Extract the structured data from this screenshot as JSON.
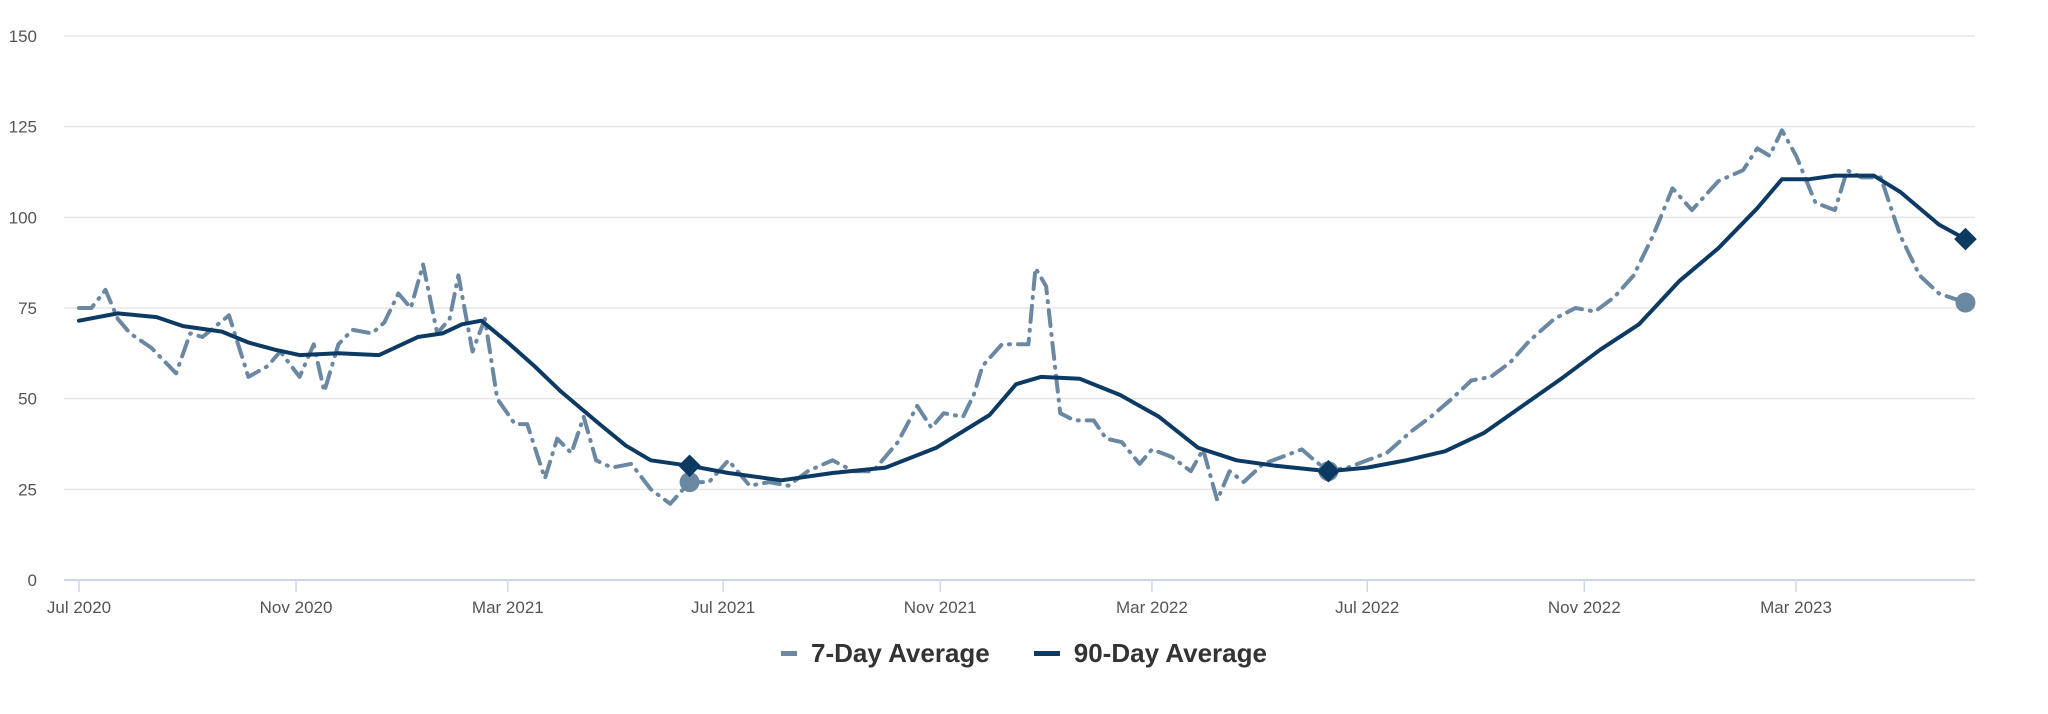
{
  "chart_data": {
    "type": "line",
    "x_unit": "days since 2020-07-01",
    "xlim": [
      0,
      1075
    ],
    "ylim": [
      0,
      150
    ],
    "y_ticks": [
      0,
      25,
      50,
      75,
      100,
      125,
      150
    ],
    "x_ticks": [
      {
        "label": "Jul 2020",
        "x": 0
      },
      {
        "label": "Nov 2020",
        "x": 123
      },
      {
        "label": "Mar 2021",
        "x": 243
      },
      {
        "label": "Jul 2021",
        "x": 365
      },
      {
        "label": "Nov 2021",
        "x": 488
      },
      {
        "label": "Mar 2022",
        "x": 608
      },
      {
        "label": "Jul 2022",
        "x": 730
      },
      {
        "label": "Nov 2022",
        "x": 853
      },
      {
        "label": "Mar 2023",
        "x": 973
      }
    ],
    "grid": true,
    "legend_position": "bottom-center",
    "series": [
      {
        "name": "7-Day Average",
        "color": "#6b88a3",
        "style": "dashed",
        "marker": "circle",
        "marked_points": [
          346,
          708,
          1069
        ],
        "points": [
          [
            0,
            75
          ],
          [
            7,
            75
          ],
          [
            15,
            80
          ],
          [
            22,
            72
          ],
          [
            29,
            68
          ],
          [
            41,
            64
          ],
          [
            55,
            57
          ],
          [
            63,
            68
          ],
          [
            70,
            67
          ],
          [
            85,
            73
          ],
          [
            96,
            56
          ],
          [
            107,
            59
          ],
          [
            114,
            63
          ],
          [
            125,
            56
          ],
          [
            133,
            65
          ],
          [
            139,
            52
          ],
          [
            147,
            65
          ],
          [
            155,
            69
          ],
          [
            166,
            68
          ],
          [
            173,
            71
          ],
          [
            181,
            79
          ],
          [
            188,
            75
          ],
          [
            195,
            87
          ],
          [
            203,
            68
          ],
          [
            210,
            72
          ],
          [
            215,
            84
          ],
          [
            223,
            63
          ],
          [
            230,
            72
          ],
          [
            237,
            50
          ],
          [
            247,
            43
          ],
          [
            254,
            43
          ],
          [
            264,
            28
          ],
          [
            271,
            39
          ],
          [
            279,
            35
          ],
          [
            286,
            45
          ],
          [
            293,
            33
          ],
          [
            302,
            31
          ],
          [
            313,
            32
          ],
          [
            324,
            25
          ],
          [
            335,
            21
          ],
          [
            346,
            27
          ],
          [
            357,
            27
          ],
          [
            368,
            33
          ],
          [
            380,
            26
          ],
          [
            391,
            27
          ],
          [
            402,
            26
          ],
          [
            413,
            30
          ],
          [
            427,
            33
          ],
          [
            439,
            30
          ],
          [
            450,
            30
          ],
          [
            457,
            34
          ],
          [
            464,
            38
          ],
          [
            475,
            48
          ],
          [
            483,
            42
          ],
          [
            490,
            46
          ],
          [
            501,
            45
          ],
          [
            507,
            51
          ],
          [
            512,
            59
          ],
          [
            523,
            65
          ],
          [
            538,
            65
          ],
          [
            542,
            86
          ],
          [
            548,
            81
          ],
          [
            556,
            46
          ],
          [
            564,
            44
          ],
          [
            575,
            44
          ],
          [
            582,
            39
          ],
          [
            591,
            38
          ],
          [
            601,
            32
          ],
          [
            608,
            36
          ],
          [
            619,
            34
          ],
          [
            630,
            30
          ],
          [
            637,
            36
          ],
          [
            645,
            22
          ],
          [
            652,
            30
          ],
          [
            660,
            27
          ],
          [
            671,
            32
          ],
          [
            682,
            34
          ],
          [
            693,
            36
          ],
          [
            700,
            33
          ],
          [
            708,
            30
          ],
          [
            719,
            31
          ],
          [
            730,
            33
          ],
          [
            741,
            35
          ],
          [
            755,
            41
          ],
          [
            766,
            45
          ],
          [
            778,
            50
          ],
          [
            789,
            55
          ],
          [
            800,
            56
          ],
          [
            811,
            60
          ],
          [
            822,
            66
          ],
          [
            836,
            72
          ],
          [
            848,
            75
          ],
          [
            859,
            74
          ],
          [
            870,
            78
          ],
          [
            881,
            84
          ],
          [
            892,
            95
          ],
          [
            903,
            108
          ],
          [
            914,
            102
          ],
          [
            929,
            110
          ],
          [
            943,
            113
          ],
          [
            951,
            119
          ],
          [
            958,
            117
          ],
          [
            965,
            124
          ],
          [
            973,
            117
          ],
          [
            984,
            104
          ],
          [
            995,
            102
          ],
          [
            1002,
            113
          ],
          [
            1010,
            111
          ],
          [
            1021,
            111
          ],
          [
            1032,
            95
          ],
          [
            1043,
            84
          ],
          [
            1054,
            79
          ],
          [
            1069,
            76.5
          ]
        ]
      },
      {
        "name": "90-Day Average",
        "color": "#0d3a63",
        "style": "solid",
        "marker": "diamond",
        "marked_points": [
          346,
          708,
          1069
        ],
        "points": [
          [
            0,
            71.5
          ],
          [
            22,
            73.5
          ],
          [
            44,
            72.5
          ],
          [
            59,
            70
          ],
          [
            81,
            68.5
          ],
          [
            96,
            65.5
          ],
          [
            111,
            63.5
          ],
          [
            125,
            62
          ],
          [
            147,
            62.5
          ],
          [
            170,
            62
          ],
          [
            192,
            67
          ],
          [
            206,
            68
          ],
          [
            217,
            70.5
          ],
          [
            228,
            71.5
          ],
          [
            243,
            65.5
          ],
          [
            258,
            59
          ],
          [
            273,
            52
          ],
          [
            295,
            43
          ],
          [
            310,
            37
          ],
          [
            324,
            33
          ],
          [
            346,
            31.5
          ],
          [
            368,
            29.5
          ],
          [
            398,
            27.5
          ],
          [
            427,
            29.5
          ],
          [
            457,
            31
          ],
          [
            486,
            36.5
          ],
          [
            516,
            45.5
          ],
          [
            531,
            54
          ],
          [
            545,
            56
          ],
          [
            567,
            55.5
          ],
          [
            590,
            51
          ],
          [
            612,
            45
          ],
          [
            634,
            36.5
          ],
          [
            656,
            33
          ],
          [
            678,
            31.5
          ],
          [
            708,
            30
          ],
          [
            730,
            31
          ],
          [
            752,
            33
          ],
          [
            774,
            35.5
          ],
          [
            796,
            40.5
          ],
          [
            818,
            48
          ],
          [
            840,
            55.5
          ],
          [
            862,
            63.5
          ],
          [
            884,
            70.5
          ],
          [
            907,
            82.5
          ],
          [
            929,
            91.5
          ],
          [
            951,
            102.5
          ],
          [
            965,
            110.5
          ],
          [
            980,
            110.5
          ],
          [
            995,
            111.5
          ],
          [
            1017,
            111.5
          ],
          [
            1032,
            107
          ],
          [
            1054,
            98
          ],
          [
            1069,
            94
          ]
        ]
      }
    ]
  }
}
